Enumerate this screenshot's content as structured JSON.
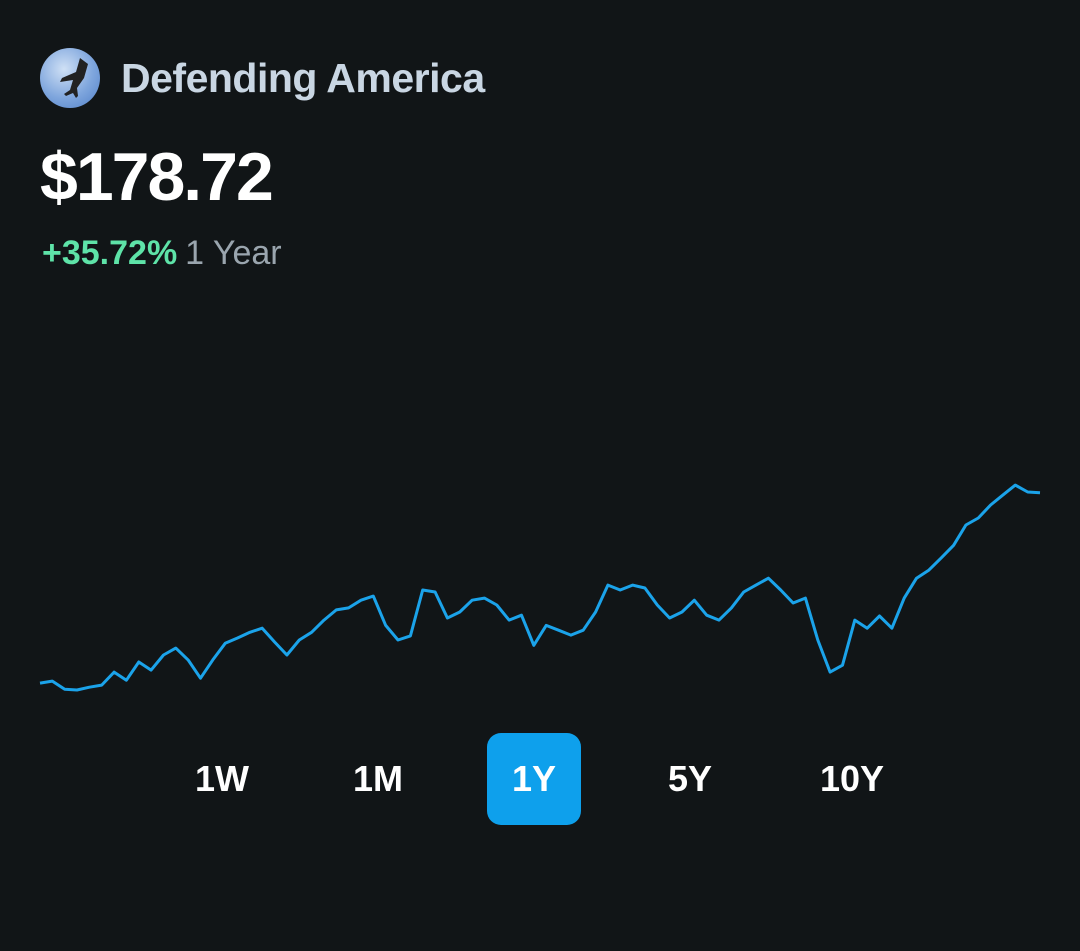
{
  "fund": {
    "name": "Defending America",
    "price": "$178.72",
    "change": "+35.72%",
    "period": "1 Year"
  },
  "ranges": [
    {
      "label": "1W",
      "active": false
    },
    {
      "label": "1M",
      "active": false
    },
    {
      "label": "1Y",
      "active": true
    },
    {
      "label": "5Y",
      "active": false
    },
    {
      "label": "10Y",
      "active": false
    }
  ],
  "colors": {
    "line": "#1ba3ea",
    "accent": "#0ea0ec",
    "positive": "#5ee3a8"
  },
  "chart_data": {
    "type": "area",
    "title": "",
    "xlabel": "",
    "ylabel": "",
    "ylim": [
      130.0,
      191.5
    ],
    "values": [
      131.7,
      132.2,
      130.2,
      130.0,
      130.7,
      131.2,
      134.4,
      132.4,
      136.9,
      134.9,
      138.6,
      140.3,
      137.4,
      132.9,
      137.4,
      141.5,
      142.8,
      144.2,
      145.2,
      141.8,
      138.6,
      142.3,
      144.2,
      147.2,
      149.7,
      150.2,
      152.1,
      153.1,
      145.9,
      142.3,
      143.3,
      154.6,
      154.1,
      147.7,
      149.2,
      152.1,
      152.6,
      150.9,
      147.2,
      148.4,
      141.0,
      145.9,
      144.7,
      143.5,
      144.7,
      149.2,
      155.8,
      154.6,
      155.8,
      155.1,
      150.9,
      147.7,
      149.2,
      152.1,
      148.4,
      147.2,
      150.2,
      154.1,
      155.8,
      157.5,
      154.6,
      151.4,
      152.6,
      142.3,
      134.4,
      136.1,
      147.2,
      145.2,
      148.2,
      145.2,
      152.6,
      157.5,
      159.5,
      162.5,
      165.6,
      170.6,
      172.3,
      175.5,
      178.0,
      180.4,
      178.7,
      178.5
    ]
  }
}
